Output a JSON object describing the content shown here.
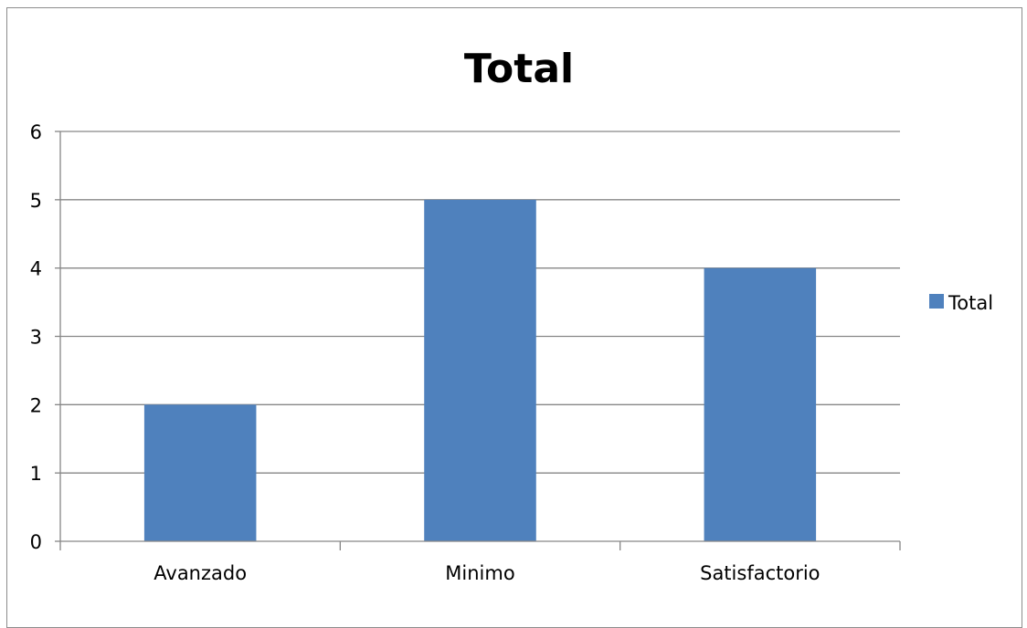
{
  "chart_data": {
    "type": "bar",
    "title": "Total",
    "categories": [
      "Avanzado",
      "Minimo",
      "Satisfactorio"
    ],
    "series": [
      {
        "name": "Total",
        "values": [
          2,
          5,
          4
        ]
      }
    ],
    "ylim": [
      0,
      6
    ],
    "yticks": [
      "0",
      "1",
      "2",
      "3",
      "4",
      "5",
      "6"
    ],
    "grid": true,
    "legend_position": "right",
    "colors": {
      "bar": "#4f81bd",
      "grid": "#868686",
      "axis": "#868686"
    }
  }
}
